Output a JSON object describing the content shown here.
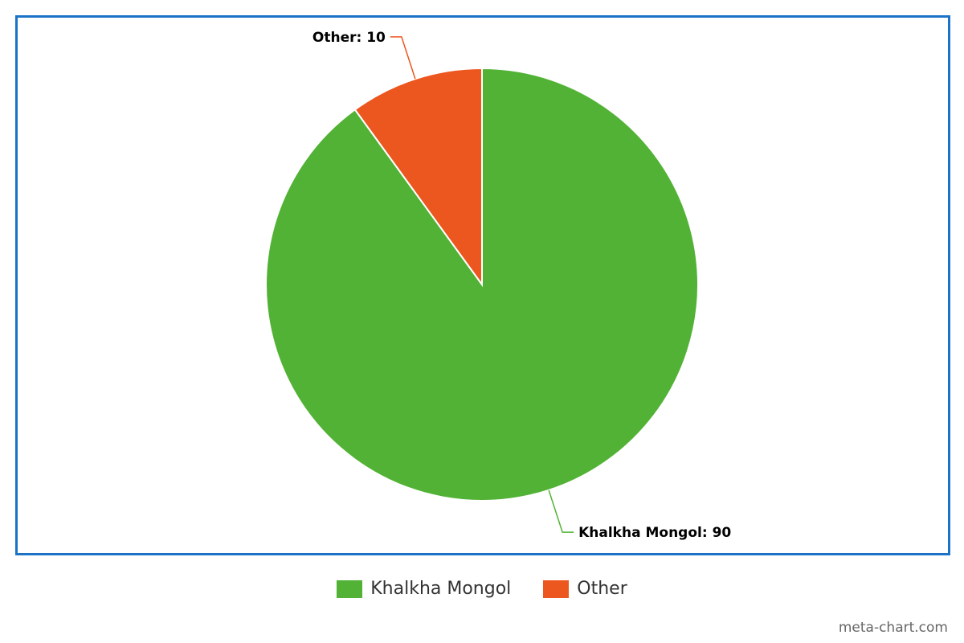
{
  "chart_data": {
    "type": "pie",
    "title": "",
    "categories": [
      "Khalkha Mongol",
      "Other"
    ],
    "values": [
      90,
      10
    ],
    "colors": [
      "#52b235",
      "#ec561f"
    ],
    "data_labels": [
      "Khalkha Mongol: 90",
      "Other: 10"
    ],
    "legend_position": "bottom",
    "frame_color": "#1a73c6"
  },
  "legend": {
    "items": [
      {
        "label": "Khalkha Mongol",
        "color": "#52b235"
      },
      {
        "label": "Other",
        "color": "#ec561f"
      }
    ]
  },
  "credit": "meta-chart.com"
}
